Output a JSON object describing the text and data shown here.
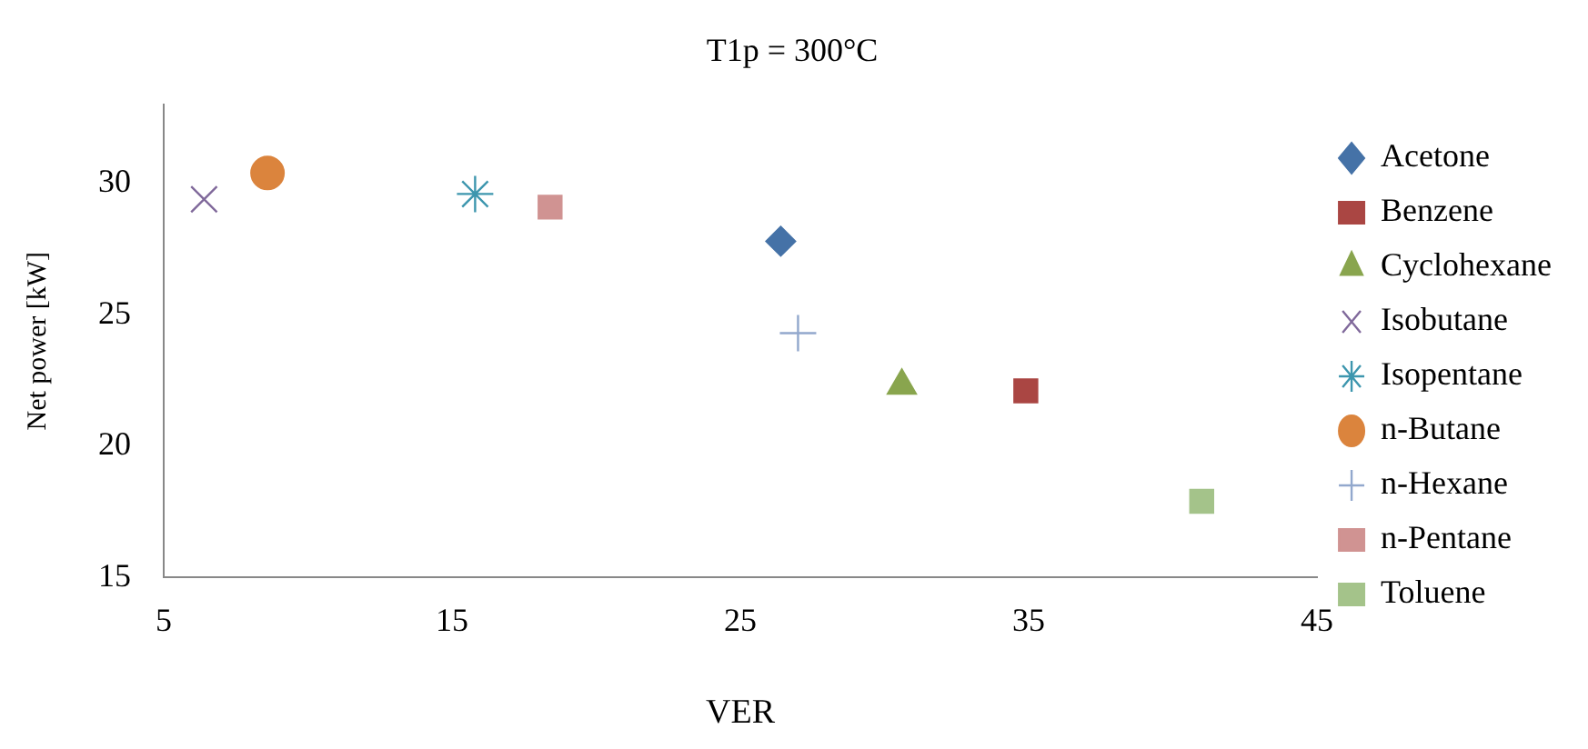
{
  "chart_data": {
    "type": "scatter",
    "title": "T1p = 300°C",
    "xlabel": "VER",
    "ylabel": "Net power [kW]",
    "xlim": [
      5,
      45
    ],
    "xticks": [
      5,
      15,
      25,
      35,
      45
    ],
    "ylim": [
      15,
      33
    ],
    "yticks": [
      15,
      20,
      25,
      30
    ],
    "grid": false,
    "legend": "right",
    "series": [
      {
        "name": "Acetone",
        "color": "#4572a7",
        "marker": "diamond",
        "x": [
          26.4
        ],
        "values": [
          27.8
        ]
      },
      {
        "name": "Benzene",
        "color": "#aa4643",
        "marker": "square",
        "x": [
          34.9
        ],
        "values": [
          22.1
        ]
      },
      {
        "name": "Cyclohexane",
        "color": "#89a54e",
        "marker": "triangle",
        "x": [
          30.6
        ],
        "values": [
          22.3
        ]
      },
      {
        "name": "Isobutane",
        "color": "#80699b",
        "marker": "x",
        "x": [
          6.4
        ],
        "values": [
          29.4
        ]
      },
      {
        "name": "Isopentane",
        "color": "#3d96ae",
        "marker": "cross",
        "x": [
          15.8
        ],
        "values": [
          29.6
        ]
      },
      {
        "name": "n-Butane",
        "color": "#db843d",
        "marker": "circle",
        "x": [
          8.6
        ],
        "values": [
          30.4
        ]
      },
      {
        "name": "n-Hexane",
        "color": "#92a8cd",
        "marker": "plus",
        "x": [
          27.0
        ],
        "values": [
          24.3
        ]
      },
      {
        "name": "n-Pentane",
        "color": "#d09392",
        "marker": "square",
        "x": [
          18.4
        ],
        "values": [
          29.1
        ]
      },
      {
        "name": "Toluene",
        "color": "#a4c38a",
        "marker": "square",
        "x": [
          41.0
        ],
        "values": [
          17.9
        ]
      }
    ]
  }
}
